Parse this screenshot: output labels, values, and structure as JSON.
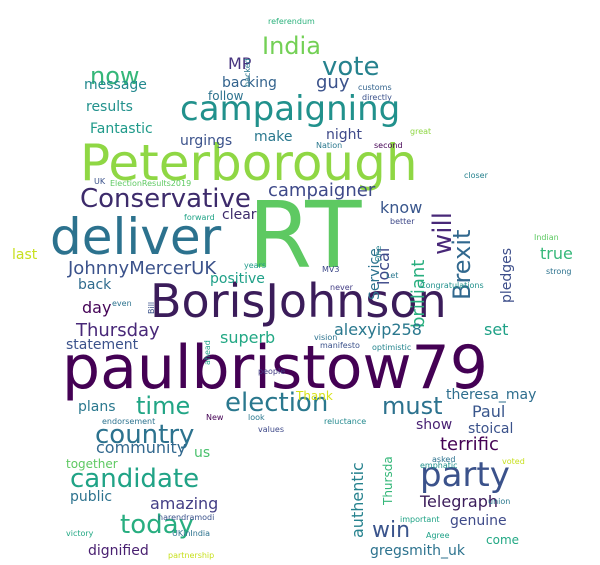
{
  "words": [
    {
      "id": "rt",
      "text": "RT",
      "color": "#5ec962"
    },
    {
      "id": "paulbristow79",
      "text": "paulbristow79",
      "color": "#440154"
    },
    {
      "id": "borisjohnson",
      "text": "BorisJohnson",
      "color": "#3b1c5a"
    },
    {
      "id": "peterborough",
      "text": "Peterborough",
      "color": "#8fd744"
    },
    {
      "id": "deliver",
      "text": "deliver",
      "color": "#2c728e"
    },
    {
      "id": "campaigning",
      "text": "campaigning",
      "color": "#21918c"
    },
    {
      "id": "party",
      "text": "party",
      "color": "#3b528b"
    },
    {
      "id": "conservative",
      "text": "Conservative",
      "color": "#3d2b6b"
    },
    {
      "id": "election",
      "text": "election",
      "color": "#2a788e"
    },
    {
      "id": "candidate",
      "text": "candidate",
      "color": "#20a386"
    },
    {
      "id": "today",
      "text": "today",
      "color": "#28ae80"
    },
    {
      "id": "country",
      "text": "country",
      "color": "#2c728e"
    },
    {
      "id": "brexit",
      "text": "Brexit",
      "color": "#31688e"
    },
    {
      "id": "will",
      "text": "will",
      "color": "#482878"
    },
    {
      "id": "vote",
      "text": "vote",
      "color": "#26828e"
    },
    {
      "id": "india",
      "text": "India",
      "color": "#73d055"
    },
    {
      "id": "must",
      "text": "must",
      "color": "#2c728e"
    },
    {
      "id": "time",
      "text": "time",
      "color": "#21a585"
    },
    {
      "id": "win",
      "text": "win",
      "color": "#3a548c"
    },
    {
      "id": "now",
      "text": "now",
      "color": "#35b779"
    },
    {
      "id": "johnnymerceruk",
      "text": "JohnnyMercerUK",
      "color": "#3b528b"
    },
    {
      "id": "thursday",
      "text": "Thursday",
      "color": "#482878"
    },
    {
      "id": "campaigner",
      "text": "campaigner",
      "color": "#3e4989"
    },
    {
      "id": "brilliant",
      "text": "brilliant",
      "color": "#29af7f"
    },
    {
      "id": "superb",
      "text": "superb",
      "color": "#22a884"
    },
    {
      "id": "terrific",
      "text": "terrific",
      "color": "#440154"
    },
    {
      "id": "community",
      "text": "community",
      "color": "#31688e"
    },
    {
      "id": "amazing",
      "text": "amazing",
      "color": "#433e85"
    },
    {
      "id": "alexyip258",
      "text": "alexyip258",
      "color": "#2a788e"
    },
    {
      "id": "authentic",
      "text": "authentic",
      "color": "#26828e"
    },
    {
      "id": "genuine",
      "text": "genuine",
      "color": "#3e4a89"
    },
    {
      "id": "telegraph",
      "text": "Telegraph",
      "color": "#3b1c5a"
    },
    {
      "id": "gregsmith_uk",
      "text": "gregsmith_uk",
      "color": "#2c728e"
    },
    {
      "id": "paul",
      "text": "Paul",
      "color": "#39568c"
    },
    {
      "id": "day",
      "text": "day",
      "color": "#450457"
    },
    {
      "id": "know",
      "text": "know",
      "color": "#39568c"
    },
    {
      "id": "local",
      "text": "local",
      "color": "#3e4989"
    },
    {
      "id": "true",
      "text": "true",
      "color": "#35b779"
    },
    {
      "id": "guy",
      "text": "guy",
      "color": "#3b528b"
    },
    {
      "id": "mp",
      "text": "MP",
      "color": "#46337e"
    },
    {
      "id": "set",
      "text": "set",
      "color": "#1fa187"
    },
    {
      "id": "backing",
      "text": "backing",
      "color": "#33638d"
    },
    {
      "id": "make",
      "text": "make",
      "color": "#2a788e"
    },
    {
      "id": "night",
      "text": "night",
      "color": "#3e4989"
    },
    {
      "id": "results",
      "text": "results",
      "color": "#21918c"
    },
    {
      "id": "message",
      "text": "message",
      "color": "#23898e"
    },
    {
      "id": "fantastic",
      "text": "Fantastic",
      "color": "#1f9a8a"
    },
    {
      "id": "urgings",
      "text": "urgings",
      "color": "#3b528b"
    },
    {
      "id": "clear",
      "text": "clear",
      "color": "#3d2b6b"
    },
    {
      "id": "follow",
      "text": "follow",
      "color": "#2c728e"
    },
    {
      "id": "positive",
      "text": "positive",
      "color": "#1fa088"
    },
    {
      "id": "back",
      "text": "back",
      "color": "#2f6b8e"
    },
    {
      "id": "statement",
      "text": "statement",
      "color": "#3b528b"
    },
    {
      "id": "plans",
      "text": "plans",
      "color": "#2a788e"
    },
    {
      "id": "show",
      "text": "show",
      "color": "#482173"
    },
    {
      "id": "stoical",
      "text": "stoical",
      "color": "#3b528b"
    },
    {
      "id": "theresa_may",
      "text": "theresa_may",
      "color": "#2e6e8e"
    },
    {
      "id": "pledges",
      "text": "pledges",
      "color": "#3d4e8a"
    },
    {
      "id": "service",
      "text": "Service",
      "color": "#2c728e"
    },
    {
      "id": "last",
      "text": "last",
      "color": "#c8e020"
    },
    {
      "id": "public",
      "text": "public",
      "color": "#2c728e"
    },
    {
      "id": "dignified",
      "text": "dignified",
      "color": "#481f70"
    },
    {
      "id": "together",
      "text": "together",
      "color": "#5ec962"
    },
    {
      "id": "us",
      "text": "us",
      "color": "#4ac16d"
    },
    {
      "id": "thursda",
      "text": "Thursda",
      "color": "#35b779"
    },
    {
      "id": "come",
      "text": "come",
      "color": "#22a884"
    },
    {
      "id": "thank",
      "text": "Thank",
      "color": "#d8e219"
    },
    {
      "id": "referendum",
      "text": "referendum",
      "color": "#2db27d"
    },
    {
      "id": "backed",
      "text": "backed",
      "color": "#2a788e"
    },
    {
      "id": "customs",
      "text": "customs",
      "color": "#33638d"
    },
    {
      "id": "directly",
      "text": "directly",
      "color": "#3b528b"
    },
    {
      "id": "nation",
      "text": "Nation",
      "color": "#2a788e"
    },
    {
      "id": "great",
      "text": "great",
      "color": "#8fd744"
    },
    {
      "id": "second",
      "text": "second",
      "color": "#440154"
    },
    {
      "id": "closer",
      "text": "closer",
      "color": "#26828e"
    },
    {
      "id": "uk",
      "text": "UK",
      "color": "#3b528b"
    },
    {
      "id": "electionresults2019",
      "text": "ElectionResults2019",
      "color": "#5ec962"
    },
    {
      "id": "forward",
      "text": "forward",
      "color": "#20a386"
    },
    {
      "id": "better",
      "text": "better",
      "color": "#3e4989"
    },
    {
      "id": "one",
      "text": "One",
      "color": "#26828e"
    },
    {
      "id": "let",
      "text": "Let",
      "color": "#2a788e"
    },
    {
      "id": "indian",
      "text": "Indian",
      "color": "#5ec962"
    },
    {
      "id": "strong",
      "text": "strong",
      "color": "#2c728e"
    },
    {
      "id": "years",
      "text": "years",
      "color": "#1f9a8a"
    },
    {
      "id": "mv3",
      "text": "MV3",
      "color": "#3e4989"
    },
    {
      "id": "bill",
      "text": "Bill",
      "color": "#3b528b"
    },
    {
      "id": "even",
      "text": "even",
      "color": "#2c728e"
    },
    {
      "id": "never",
      "text": "never",
      "color": "#433e85"
    },
    {
      "id": "congratulations",
      "text": "Congratulations",
      "color": "#21918c"
    },
    {
      "id": "optimistic",
      "text": "optimistic",
      "color": "#25858e"
    },
    {
      "id": "vision",
      "text": "vision",
      "color": "#2c728e"
    },
    {
      "id": "manifesto",
      "text": "manifesto",
      "color": "#3b528b"
    },
    {
      "id": "ahead",
      "text": "ahead",
      "color": "#1fa088"
    },
    {
      "id": "people",
      "text": "people",
      "color": "#433e85"
    },
    {
      "id": "look",
      "text": "look",
      "color": "#2a788e"
    },
    {
      "id": "values",
      "text": "values",
      "color": "#3e4989"
    },
    {
      "id": "endorsement",
      "text": "endorsement",
      "color": "#2c728e"
    },
    {
      "id": "new",
      "text": "New",
      "color": "#440154"
    },
    {
      "id": "reluctance",
      "text": "reluctance",
      "color": "#23898e"
    },
    {
      "id": "asked",
      "text": "asked",
      "color": "#2c728e"
    },
    {
      "id": "voted",
      "text": "voted",
      "color": "#c8e020"
    },
    {
      "id": "emphatic",
      "text": "emphatic",
      "color": "#21918c"
    },
    {
      "id": "union",
      "text": "union",
      "color": "#2a788e"
    },
    {
      "id": "important",
      "text": "important",
      "color": "#20a386"
    },
    {
      "id": "agree",
      "text": "Agree",
      "color": "#1fa187"
    },
    {
      "id": "narendramodi",
      "text": "narendramodi",
      "color": "#3b528b"
    },
    {
      "id": "ukinindia",
      "text": "UKinIndia",
      "color": "#2c728e"
    },
    {
      "id": "victory",
      "text": "victory",
      "color": "#22a884"
    },
    {
      "id": "partnership",
      "text": "partnership",
      "color": "#c8e020"
    }
  ]
}
